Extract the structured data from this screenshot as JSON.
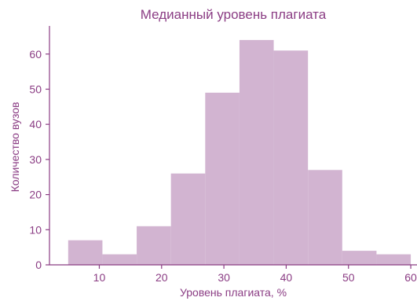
{
  "chart_data": {
    "type": "bar",
    "title": "Медианный уровень плагиата",
    "xlabel": "Уровень плагиата, %",
    "ylabel": "Количество вузов",
    "xlim": [
      2,
      61
    ],
    "ylim": [
      0,
      68
    ],
    "xticks": [
      10,
      20,
      30,
      40,
      50,
      60
    ],
    "yticks": [
      0,
      10,
      20,
      30,
      40,
      50,
      60
    ],
    "bins": [
      {
        "start": 5.0,
        "end": 10.5,
        "value": 7
      },
      {
        "start": 10.5,
        "end": 16.0,
        "value": 3
      },
      {
        "start": 16.0,
        "end": 21.5,
        "value": 11
      },
      {
        "start": 21.5,
        "end": 27.0,
        "value": 26
      },
      {
        "start": 27.0,
        "end": 32.5,
        "value": 49
      },
      {
        "start": 32.5,
        "end": 38.0,
        "value": 64
      },
      {
        "start": 38.0,
        "end": 43.5,
        "value": 61
      },
      {
        "start": 43.5,
        "end": 49.0,
        "value": 27
      },
      {
        "start": 49.0,
        "end": 54.5,
        "value": 4
      },
      {
        "start": 54.5,
        "end": 60.0,
        "value": 3
      }
    ],
    "colors": {
      "bar": "#d2b4d1",
      "axis": "#8b3d84",
      "text": "#8b3d84"
    },
    "grid": false,
    "legend": "none"
  }
}
